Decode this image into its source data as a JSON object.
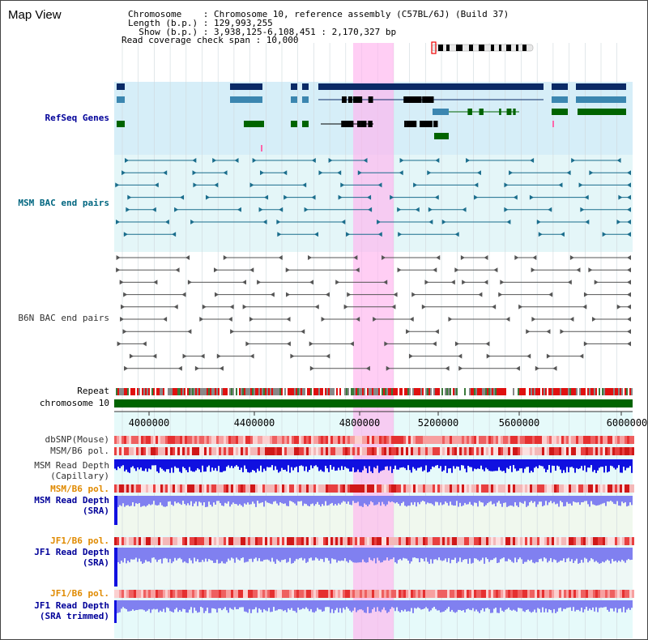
{
  "map_title": "Map View",
  "info": {
    "chromosome": "Chromosome    : Chromosome 10, reference assembly (C57BL/6J) (Build 37)",
    "length": "Length (b.p.) : 129,993,255",
    "show": "  Show (b.p.) : 3,938,125-6,108,451 : 2,170,327 bp",
    "coverage": "Read coverage check span : 10,000"
  },
  "tracks": {
    "refseq": "RefSeq Genes",
    "msm_bac": "MSM BAC end pairs",
    "b6n_bac": "B6N BAC end pairs",
    "repeat": "Repeat",
    "chrom": "chromosome 10",
    "dbsnp": "dbSNP(Mouse)",
    "msm_b6_pol": "MSM/B6 pol.",
    "msm_read_cap_1": "MSM Read Depth",
    "msm_read_cap_2": "(Capillary)",
    "msm_b6_pol_2": "MSM/B6 pol.",
    "msm_read_sra_1": "MSM Read Depth",
    "msm_read_sra_2": "(SRA)",
    "jf1_b6_pol": "JF1/B6 pol.",
    "jf1_read_sra_1": "JF1 Read Depth",
    "jf1_read_sra_2": "(SRA)",
    "jf1_b6_pol_2": "JF1/B6 pol.",
    "jf1_read_trim_1": "JF1 Read Depth",
    "jf1_read_trim_2": "(SRA trimmed)"
  },
  "axis_ticks": [
    "4000000",
    "4400000",
    "4800000",
    "5200000",
    "5600000",
    "6000000"
  ],
  "colors": {
    "gene_dark": "#0a2a66",
    "gene_mid": "#3b86b0",
    "gene_green": "#006400",
    "bac_teal": "#1a6d8c",
    "bac_gray": "#555555",
    "highlight": "#ffb3ee",
    "read_blue": "#1010e0",
    "read_light": "#8080f0",
    "pol_red": "#e82020"
  }
}
